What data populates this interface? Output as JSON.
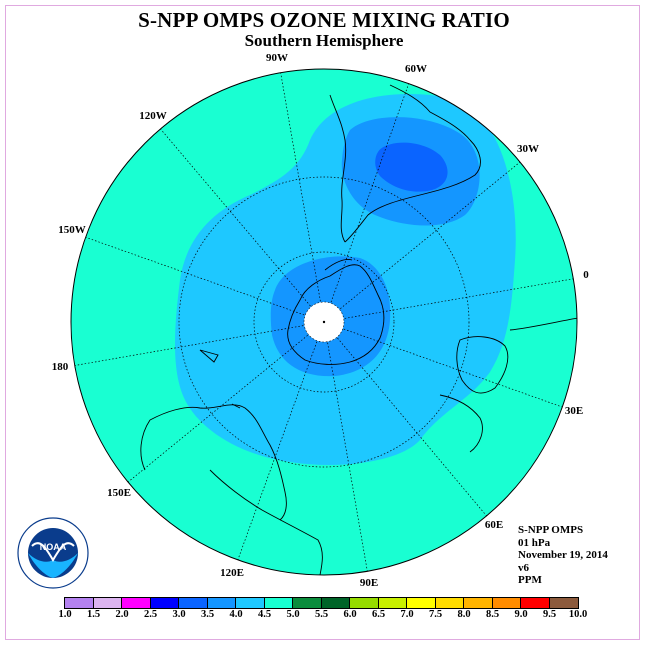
{
  "header": {
    "title": "S-NPP OMPS OZONE MIXING RATIO",
    "subtitle": "Southern Hemisphere"
  },
  "map": {
    "projection": "south polar stereographic",
    "longitude_labels": [
      "90W",
      "60W",
      "30W",
      "0",
      "30E",
      "60E",
      "90E",
      "120E",
      "150E",
      "180",
      "150W",
      "120W"
    ],
    "colors": {
      "ocean_fill_cyan": "#19ffd2",
      "band_4_0": "#1ec8ff",
      "band_3_5": "#1496ff",
      "band_3_0": "#0a64ff",
      "pole_cap": "#ffffff"
    }
  },
  "info": {
    "instrument": "S-NPP OMPS",
    "level": "01 hPa",
    "date": "November 19, 2014",
    "version": "v6",
    "units": "PPM"
  },
  "colorbar": {
    "labels": [
      "1.0",
      "1.5",
      "2.0",
      "2.5",
      "3.0",
      "3.5",
      "4.0",
      "4.5",
      "5.0",
      "5.5",
      "6.0",
      "6.5",
      "7.0",
      "7.5",
      "8.0",
      "8.5",
      "9.0",
      "9.5",
      "10.0"
    ],
    "colors": [
      "#b482f0",
      "#dcb4f0",
      "#ff00ff",
      "#0000ff",
      "#0a64ff",
      "#1496ff",
      "#1ec8ff",
      "#19ffd2",
      "#0a8c3c",
      "#006428",
      "#96dc00",
      "#c8f000",
      "#ffff00",
      "#ffdc00",
      "#ffb400",
      "#ff8c00",
      "#ff0000",
      "#8c5a3c"
    ]
  },
  "logo": {
    "text": "NOAA",
    "ring_text": "NATIONAL OCEANIC AND ATMOSPHERIC ADMINISTRATION · U.S. DEPARTMENT OF COMMERCE"
  }
}
